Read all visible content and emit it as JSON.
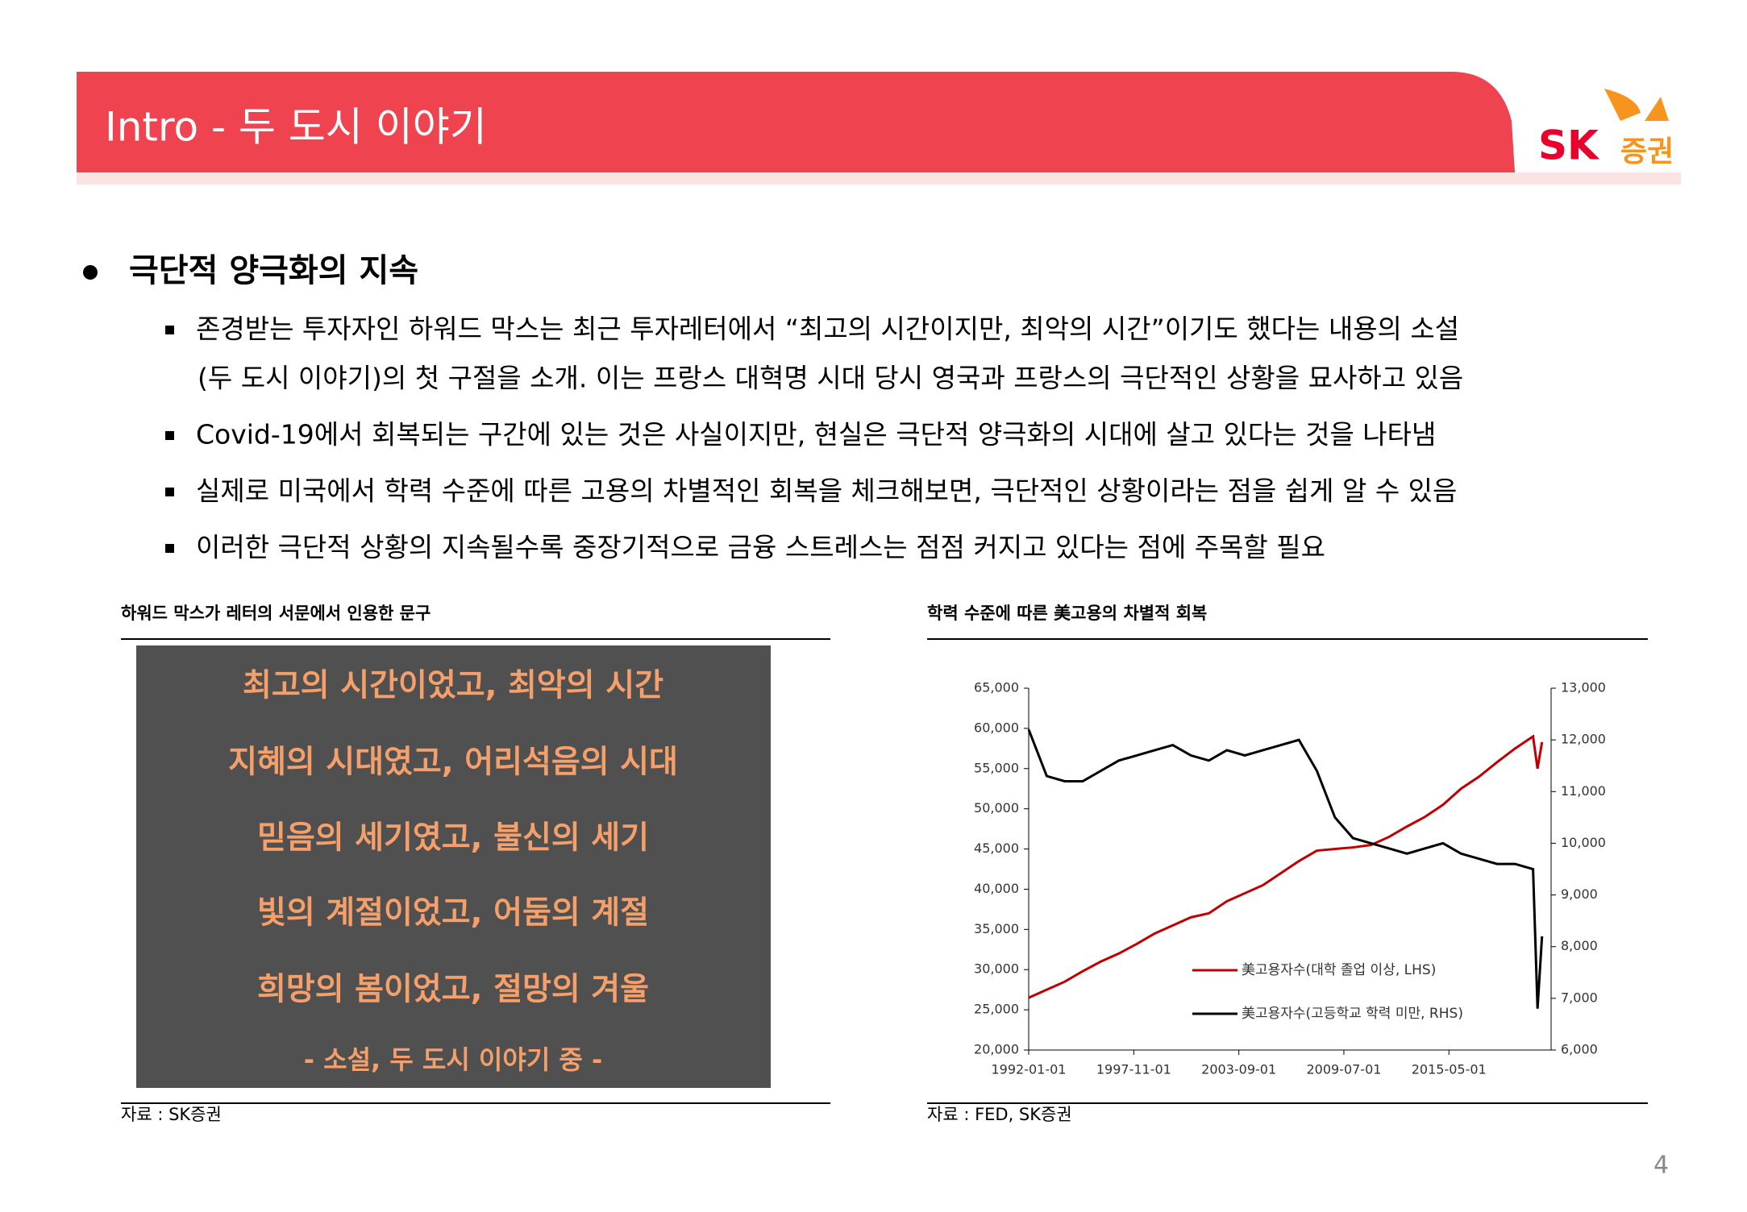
{
  "header": {
    "title": "Intro - 두 도시 이야기",
    "logo_sk": "SK",
    "logo_text": "증권"
  },
  "section": {
    "heading": "극단적 양극화의 지속",
    "bullets": [
      "존경받는 투자자인 하워드 막스는 최근 투자레터에서 “최고의 시간이지만, 최악의 시간”이기도 했다는 내용의 소설",
      "(두 도시 이야기)의 첫 구절을 소개. 이는 프랑스 대혁명 시대 당시 영국과 프랑스의 극단적인 상황을 묘사하고 있음",
      "Covid-19에서 회복되는 구간에 있는 것은 사실이지만, 현실은 극단적 양극화의 시대에 살고 있다는 것을 나타냄",
      "실제로 미국에서 학력 수준에 따른 고용의 차별적인 회복을 체크해보면, 극단적인 상황이라는 점을 쉽게 알 수 있음",
      "이러한 극단적 상황의 지속될수록 중장기적으로 금융 스트레스는 점점 커지고 있다는 점에 주목할 필요"
    ]
  },
  "left_panel": {
    "title": "하워드 막스가 레터의 서문에서 인용한 문구",
    "lines": [
      "최고의 시간이었고, 최악의 시간",
      "지혜의 시대였고, 어리석음의 시대",
      "믿음의 세기였고, 불신의 세기",
      "빛의 계절이었고, 어둠의 계절",
      "희망의 봄이었고, 절망의 겨울"
    ],
    "attribution": "- 소설, 두 도시 이야기 중 -",
    "source": "자료 : SK증권"
  },
  "chart_data": {
    "type": "line",
    "title": "학력 수준에 따른 美고용의 차별적 회복",
    "source": "자료 : FED, SK증권",
    "x": [
      "1992-01-01",
      "1993-01-01",
      "1994-01-01",
      "1995-01-01",
      "1996-01-01",
      "1997-01-01",
      "1998-01-01",
      "1999-01-01",
      "2000-01-01",
      "2001-01-01",
      "2002-01-01",
      "2003-01-01",
      "2004-01-01",
      "2005-01-01",
      "2006-01-01",
      "2007-01-01",
      "2008-01-01",
      "2009-01-01",
      "2010-01-01",
      "2011-01-01",
      "2012-01-01",
      "2013-01-01",
      "2014-01-01",
      "2015-01-01",
      "2016-01-01",
      "2017-01-01",
      "2018-01-01",
      "2019-01-01",
      "2020-01-01",
      "2020-04-01",
      "2020-07-01"
    ],
    "xlim": [
      "1992-01-01",
      "2021-01-01"
    ],
    "xticks": [
      "1992-01-01",
      "1997-11-01",
      "2003-09-01",
      "2009-07-01",
      "2015-05-01"
    ],
    "ylim": [
      20000,
      65000
    ],
    "yticks": [
      {
        "value": 20000,
        "label": "20,000"
      },
      {
        "value": 25000,
        "label": "25,000"
      },
      {
        "value": 30000,
        "label": "30,000"
      },
      {
        "value": 35000,
        "label": "35,000"
      },
      {
        "value": 40000,
        "label": "40,000"
      },
      {
        "value": 45000,
        "label": "45,000"
      },
      {
        "value": 50000,
        "label": "50,000"
      },
      {
        "value": 55000,
        "label": "55,000"
      },
      {
        "value": 60000,
        "label": "60,000"
      },
      {
        "value": 65000,
        "label": "65,000"
      }
    ],
    "y2lim": [
      6000,
      13000
    ],
    "y2ticks": [
      {
        "value": 6000,
        "label": "6,000"
      },
      {
        "value": 7000,
        "label": "7,000"
      },
      {
        "value": 8000,
        "label": "8,000"
      },
      {
        "value": 9000,
        "label": "9,000"
      },
      {
        "value": 10000,
        "label": "10,000"
      },
      {
        "value": 11000,
        "label": "11,000"
      },
      {
        "value": 12000,
        "label": "12,000"
      },
      {
        "value": 13000,
        "label": "13,000"
      }
    ],
    "series": [
      {
        "name": "美고용자수(대학 졸업 이상, LHS)",
        "color": "#c00000",
        "values": [
          26500,
          27500,
          28500,
          29800,
          31000,
          32000,
          33200,
          34500,
          35500,
          36500,
          37000,
          38500,
          39500,
          40500,
          42000,
          43500,
          44800,
          45000,
          45200,
          45500,
          46500,
          47800,
          49000,
          50500,
          52500,
          54000,
          55800,
          57500,
          59000,
          55000,
          58300
        ]
      },
      {
        "name": "美고용자수(고등학교 학력 미만, RHS)",
        "color": "#000000",
        "axis": "y2",
        "values": [
          12200,
          11300,
          11200,
          11200,
          11400,
          11600,
          11700,
          11800,
          11900,
          11700,
          11600,
          11800,
          11700,
          11800,
          11900,
          12000,
          11400,
          10500,
          10100,
          10000,
          9900,
          9800,
          9900,
          10000,
          9800,
          9700,
          9600,
          9600,
          9500,
          6800,
          8200
        ]
      }
    ]
  },
  "page_number": "4"
}
